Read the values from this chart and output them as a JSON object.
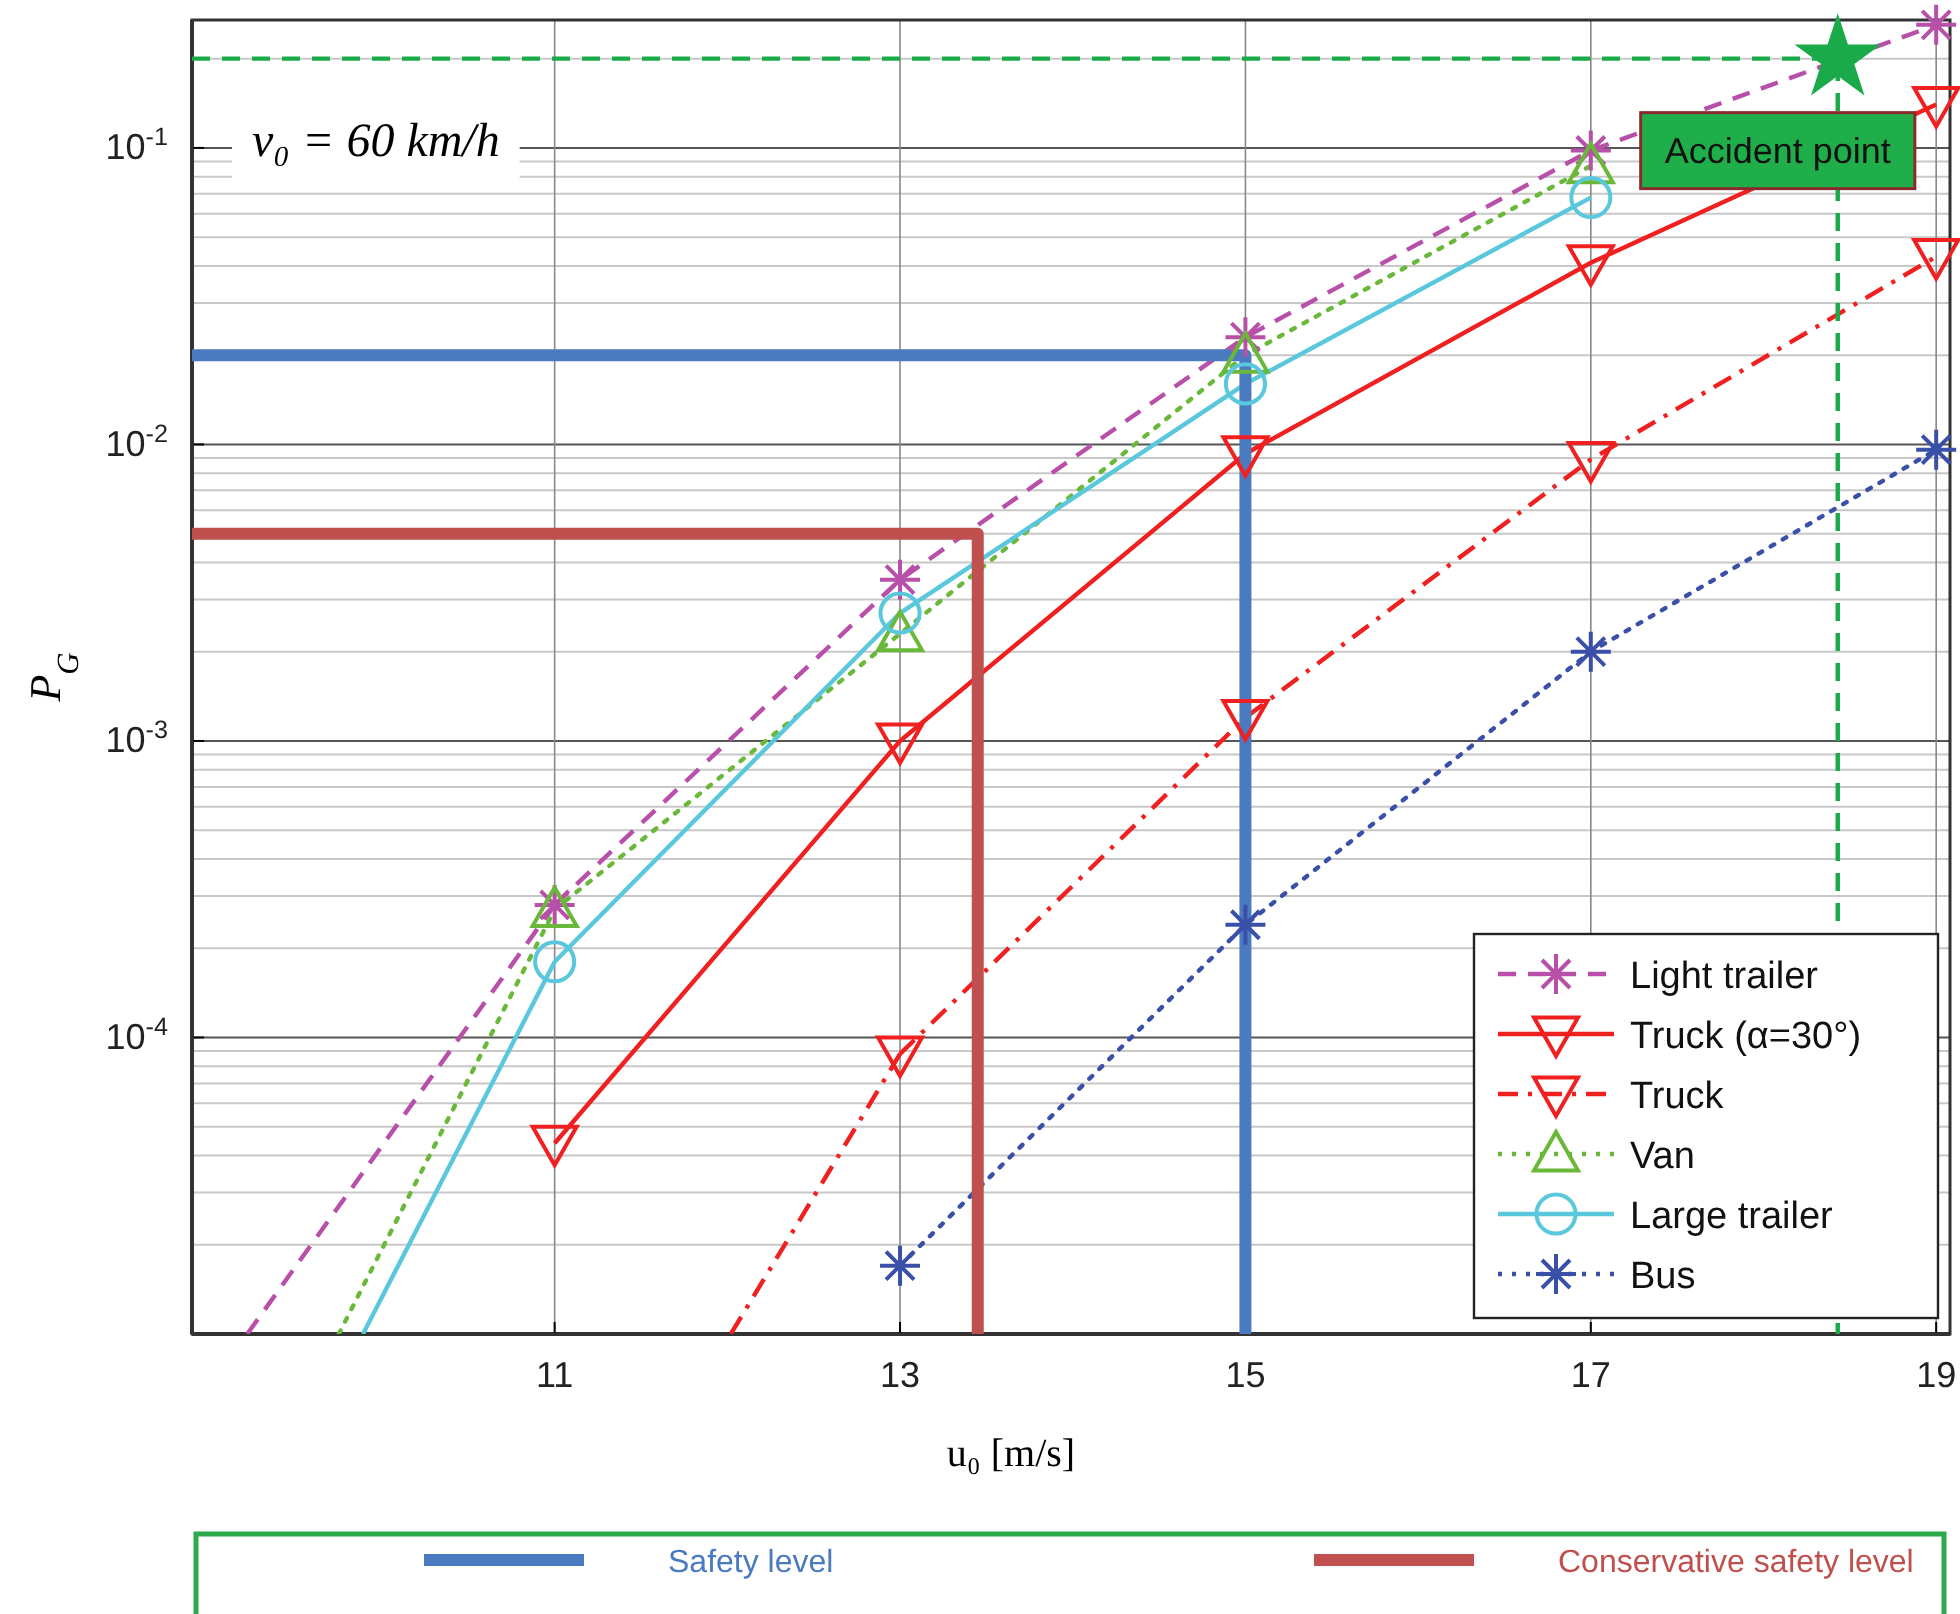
{
  "chart_data": {
    "type": "line",
    "xlabel": "u₀ [m/s]",
    "ylabel": "P$_{G}$",
    "xlim": [
      8.9,
      19.08
    ],
    "xticks": [
      11,
      13,
      15,
      17,
      19
    ],
    "ylim": [
      1e-05,
      0.27
    ],
    "yticks": [
      {
        "value": 0.0001,
        "label": "10$^{-4}$"
      },
      {
        "value": 0.001,
        "label": "10$^{-3}$"
      },
      {
        "value": 0.01,
        "label": "10$^{-2}$"
      },
      {
        "value": 0.1,
        "label": "10$^{-1}$"
      }
    ],
    "log": "y",
    "grid": true,
    "legend": "bottom right",
    "annotations": [
      "v₀ = 60 km/h",
      {
        "text": "Accident point",
        "x": 18.43,
        "y": 0.2
      }
    ],
    "series": [
      {
        "name": "Light trailer",
        "color": "#b84fa8",
        "x": [
          11,
          13,
          15,
          17,
          19
        ],
        "values": [
          0.00028,
          0.0035,
          0.023,
          0.098,
          0.26
        ],
        "line_style": "dashed",
        "marker": "cross"
      },
      {
        "name": "Truck (α=30°)",
        "color": "#f02020",
        "x": [
          11,
          13,
          15,
          17,
          19
        ],
        "values": [
          4.4e-05,
          0.001,
          0.0093,
          0.041,
          0.14
        ],
        "line_style": "solid",
        "marker": "triangle-down"
      },
      {
        "name": "Truck",
        "color": "#f02020",
        "x": [
          13,
          15,
          17,
          19
        ],
        "values": [
          8.8e-05,
          0.0012,
          0.0089,
          0.043
        ],
        "line_style": "dashdot",
        "marker": "triangle-down"
      },
      {
        "name": "Van",
        "color": "#6ab83a",
        "x": [
          11,
          13,
          15,
          17
        ],
        "values": [
          0.00027,
          0.0023,
          0.02,
          0.087
        ],
        "line_style": "dotted",
        "marker": "triangle"
      },
      {
        "name": "Large trailer",
        "color": "#5ac8dc",
        "x": [
          11,
          13,
          15,
          17
        ],
        "values": [
          0.00018,
          0.0027,
          0.016,
          0.068
        ],
        "line_style": "solid",
        "marker": "circle"
      },
      {
        "name": "Bus",
        "color": "#3a50a8",
        "x": [
          13,
          15,
          17,
          19
        ],
        "values": [
          1.7e-05,
          0.00024,
          0.002,
          0.0096
        ],
        "line_style": "dotted",
        "marker": "cross"
      },
      {
        "color": "#b84fa8",
        "x": [
          9.22,
          11
        ],
        "values": [
          1e-05,
          0.00028
        ],
        "line_style": "dashed",
        "marker": "none"
      },
      {
        "color": "#6ab83a",
        "x": [
          9.75,
          11
        ],
        "values": [
          1e-05,
          0.00027
        ],
        "line_style": "dotted",
        "marker": "none"
      },
      {
        "color": "#5ac8dc",
        "x": [
          9.89,
          11
        ],
        "values": [
          1e-05,
          0.00018
        ],
        "line_style": "solid",
        "marker": "none"
      },
      {
        "color": "#f02020",
        "x": [
          12.02,
          13
        ],
        "values": [
          1e-05,
          8.8e-05
        ],
        "line_style": "dashdot",
        "marker": "none"
      },
      {
        "name": "Safety level",
        "color": "#4a7abf",
        "x": [
          8.9,
          15,
          15
        ],
        "values": [
          0.02,
          0.02,
          1e-05
        ],
        "line_style": "solid",
        "marker": "none"
      },
      {
        "name": "Conservative safety level",
        "color": "#c0504d",
        "x": [
          8.9,
          13.45,
          13.45
        ],
        "values": [
          0.005,
          0.005,
          1e-05
        ],
        "line_style": "solid",
        "marker": "none"
      },
      {
        "color": "#1aaa4a",
        "x": [
          8.9,
          18.43,
          18.43
        ],
        "values": [
          0.2,
          0.2,
          1e-05
        ],
        "line_style": "dashed",
        "marker": "none"
      },
      {
        "type": "scatter",
        "color": "#1aaa4a",
        "x": [
          18.43
        ],
        "values": [
          0.2
        ],
        "marker": "star"
      }
    ]
  }
}
